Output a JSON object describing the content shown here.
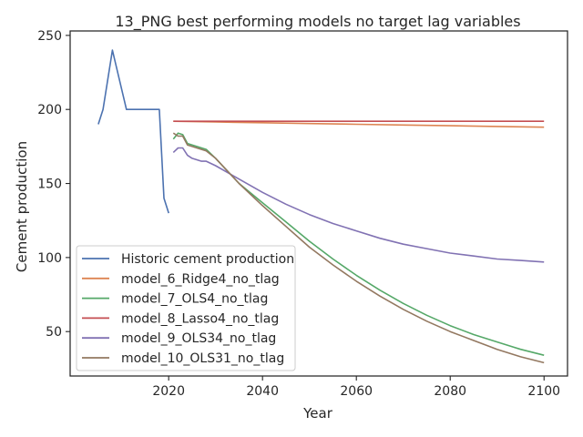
{
  "chart_data": {
    "type": "line",
    "title": "13_PNG best performing models no target lag variables",
    "xlabel": "Year",
    "ylabel": "Cement production",
    "xlim": [
      1999,
      2105
    ],
    "ylim": [
      20,
      253
    ],
    "xticks": [
      2020,
      2040,
      2060,
      2080,
      2100
    ],
    "yticks": [
      50,
      100,
      150,
      200,
      250
    ],
    "grid": false,
    "legend_position": "lower-left",
    "series": [
      {
        "name": "Historic cement production",
        "color": "#4c72b0",
        "x": [
          2005,
          2006,
          2008,
          2011,
          2018,
          2019,
          2020
        ],
        "y": [
          190,
          200,
          240,
          200,
          200,
          140,
          130
        ]
      },
      {
        "name": "model_6_Ridge4_no_tlag",
        "color": "#dd8452",
        "x": [
          2021,
          2030,
          2040,
          2050,
          2060,
          2070,
          2080,
          2090,
          2100
        ],
        "y": [
          192,
          191.5,
          191,
          190.5,
          190,
          189.5,
          189,
          188.5,
          188
        ]
      },
      {
        "name": "model_7_OLS4_no_tlag",
        "color": "#55a868",
        "x": [
          2021,
          2022,
          2023,
          2024,
          2026,
          2028,
          2030,
          2035,
          2040,
          2045,
          2050,
          2055,
          2060,
          2065,
          2070,
          2075,
          2080,
          2085,
          2090,
          2095,
          2100
        ],
        "y": [
          180,
          184,
          183,
          177,
          175,
          173,
          167,
          150,
          137,
          124,
          111,
          99,
          88,
          78,
          69,
          61,
          54,
          48,
          43,
          38,
          34
        ]
      },
      {
        "name": "model_8_Lasso4_no_tlag",
        "color": "#c44e52",
        "x": [
          2021,
          2040,
          2060,
          2080,
          2100
        ],
        "y": [
          192,
          192,
          192,
          192,
          192
        ]
      },
      {
        "name": "model_9_OLS34_no_tlag",
        "color": "#8172b3",
        "x": [
          2021,
          2022,
          2023,
          2024,
          2025,
          2026,
          2027,
          2028,
          2030,
          2035,
          2040,
          2045,
          2050,
          2055,
          2060,
          2065,
          2070,
          2075,
          2080,
          2085,
          2090,
          2095,
          2100
        ],
        "y": [
          171,
          174,
          174,
          169,
          167,
          166,
          165,
          165,
          162,
          153,
          144,
          136,
          129,
          123,
          118,
          113,
          109,
          106,
          103,
          101,
          99,
          98,
          97
        ]
      },
      {
        "name": "model_10_OLS31_no_tlag",
        "color": "#937860",
        "x": [
          2021,
          2022,
          2023,
          2024,
          2026,
          2028,
          2030,
          2035,
          2040,
          2045,
          2050,
          2055,
          2060,
          2065,
          2070,
          2075,
          2080,
          2085,
          2090,
          2095,
          2100
        ],
        "y": [
          184,
          182,
          182,
          176,
          174,
          172,
          167,
          150,
          135,
          121,
          107,
          95,
          84,
          74,
          65,
          57,
          50,
          44,
          38,
          33,
          29
        ]
      }
    ]
  }
}
